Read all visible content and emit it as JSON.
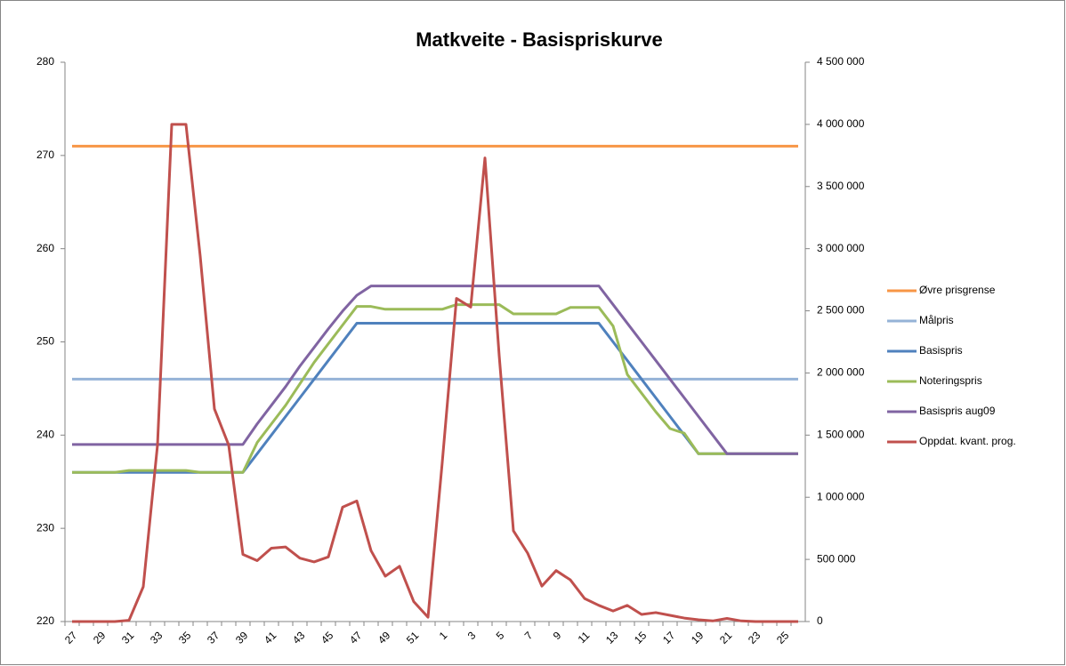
{
  "chart_data": {
    "type": "line",
    "title": "Matkveite - Basispriskurve",
    "categories": [
      "27",
      null,
      "29",
      null,
      "31",
      null,
      "33",
      null,
      "35",
      null,
      "37",
      null,
      "39",
      null,
      "41",
      null,
      "43",
      null,
      "45",
      null,
      "47",
      null,
      "49",
      null,
      "51",
      null,
      "1",
      null,
      "3",
      null,
      "5",
      null,
      "7",
      null,
      "9",
      null,
      "11",
      null,
      "13",
      null,
      "15",
      null,
      "17",
      null,
      "19",
      null,
      "21",
      null,
      "23",
      null,
      "25",
      null
    ],
    "ylim": [
      220,
      280
    ],
    "yticks": [
      220,
      230,
      240,
      250,
      260,
      270,
      280
    ],
    "y2lim": [
      0,
      4500000
    ],
    "y2ticks": [
      {
        "value": 0,
        "label": "0"
      },
      {
        "value": 500000,
        "label": "500 000"
      },
      {
        "value": 1000000,
        "label": "1 000 000"
      },
      {
        "value": 1500000,
        "label": "1 500 000"
      },
      {
        "value": 2000000,
        "label": "2 000 000"
      },
      {
        "value": 2500000,
        "label": "2 500 000"
      },
      {
        "value": 3000000,
        "label": "3 000 000"
      },
      {
        "value": 3500000,
        "label": "3 500 000"
      },
      {
        "value": 4000000,
        "label": "4 000 000"
      },
      {
        "value": 4500000,
        "label": "4 500 000"
      }
    ],
    "grid": false,
    "legend": "right",
    "series": [
      {
        "name": "Øvre prisgrense",
        "color": "#F79646",
        "values": [
          271,
          271,
          271,
          271,
          271,
          271,
          271,
          271,
          271,
          271,
          271,
          271,
          271,
          271,
          271,
          271,
          271,
          271,
          271,
          271,
          271,
          271,
          271,
          271,
          271,
          271,
          271,
          271,
          271,
          271,
          271,
          271,
          271,
          271,
          271,
          271,
          271,
          271,
          271,
          271,
          271,
          271,
          271,
          271,
          271,
          271,
          271,
          271,
          271,
          271,
          271,
          271
        ]
      },
      {
        "name": "Målpris",
        "color": "#95B3D7",
        "values": [
          246,
          246,
          246,
          246,
          246,
          246,
          246,
          246,
          246,
          246,
          246,
          246,
          246,
          246,
          246,
          246,
          246,
          246,
          246,
          246,
          246,
          246,
          246,
          246,
          246,
          246,
          246,
          246,
          246,
          246,
          246,
          246,
          246,
          246,
          246,
          246,
          246,
          246,
          246,
          246,
          246,
          246,
          246,
          246,
          246,
          246,
          246,
          246,
          246,
          246,
          246,
          246
        ]
      },
      {
        "name": "Basispris",
        "color": "#4F81BD",
        "values": [
          236,
          236,
          236,
          236,
          236,
          236,
          236,
          236,
          236,
          236,
          236,
          236,
          236,
          238,
          240,
          242,
          244,
          246,
          248,
          250,
          252,
          252,
          252,
          252,
          252,
          252,
          252,
          252,
          252,
          252,
          252,
          252,
          252,
          252,
          252,
          252,
          252,
          252,
          250,
          248,
          246,
          244,
          242,
          240,
          238,
          238,
          238,
          238,
          238,
          238,
          238,
          238
        ]
      },
      {
        "name": "Noteringspris",
        "color": "#9BBB59",
        "values": [
          236,
          236,
          236,
          236,
          236.2,
          236.2,
          236.2,
          236.2,
          236.2,
          236,
          236,
          236,
          236,
          239.2,
          241.2,
          243.2,
          245.5,
          247.8,
          249.8,
          251.8,
          253.8,
          253.8,
          253.5,
          253.5,
          253.5,
          253.5,
          253.5,
          254,
          254,
          254,
          254,
          253,
          253,
          253,
          253,
          253.7,
          253.7,
          253.7,
          251.7,
          246.5,
          244.5,
          242.5,
          240.7,
          240.2,
          238,
          238,
          238,
          238,
          238,
          238,
          238,
          238
        ]
      },
      {
        "name": "Basispris aug09",
        "color": "#8064A2",
        "values": [
          239,
          239,
          239,
          239,
          239,
          239,
          239,
          239,
          239,
          239,
          239,
          239,
          239,
          241.2,
          243.2,
          245.2,
          247.4,
          249.4,
          251.4,
          253.3,
          255,
          256,
          256,
          256,
          256,
          256,
          256,
          256,
          256,
          256,
          256,
          256,
          256,
          256,
          256,
          256,
          256,
          256,
          254,
          252,
          250,
          248,
          246,
          244,
          242,
          240,
          238,
          238,
          238,
          238,
          238,
          238
        ]
      },
      {
        "name": "Oppdat. kvant. prog.",
        "color": "#C0504D",
        "axis": "y2",
        "values": [
          0,
          0,
          0,
          0,
          10000,
          280000,
          1420000,
          4000000,
          4000000,
          2940000,
          1710000,
          1420000,
          540000,
          490000,
          590000,
          600000,
          510000,
          480000,
          520000,
          920000,
          970000,
          570000,
          365000,
          445000,
          160000,
          35000,
          1280000,
          2600000,
          2530000,
          3730000,
          2140000,
          730000,
          550000,
          285000,
          410000,
          335000,
          185000,
          130000,
          85000,
          130000,
          57000,
          72000,
          50000,
          28000,
          14000,
          5000,
          25000,
          5000,
          0,
          0,
          0,
          0
        ]
      }
    ]
  }
}
